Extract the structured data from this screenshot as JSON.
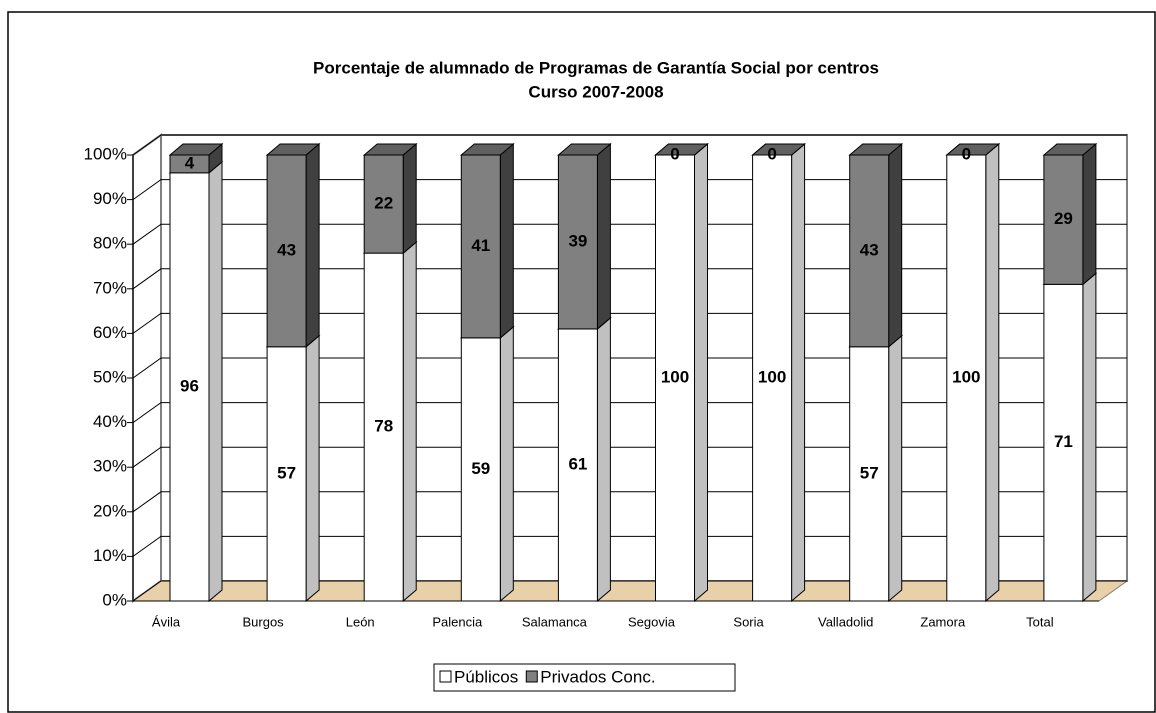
{
  "chart_data": {
    "type": "bar3d_stacked",
    "title": "Porcentaje de alumnado de Programas de Garantía Social  por centros",
    "subtitle": "Curso 2007-2008",
    "categories": [
      "Ávila",
      "Burgos",
      "León",
      "Palencia",
      "Salamanca",
      "Segovia",
      "Soria",
      "Valladolid",
      "Zamora",
      "Total"
    ],
    "series": [
      {
        "name": "Públicos",
        "color": "#ffffff",
        "values": [
          96,
          57,
          78,
          59,
          61,
          100,
          100,
          57,
          100,
          71
        ]
      },
      {
        "name": "Privados Conc.",
        "color": "#808080",
        "values": [
          4,
          43,
          22,
          41,
          39,
          0,
          0,
          43,
          0,
          29
        ]
      }
    ],
    "ylim": [
      0,
      100
    ],
    "yticks": [
      {
        "value": 0,
        "label": "0%"
      },
      {
        "value": 10,
        "label": "10%"
      },
      {
        "value": 20,
        "label": "20%"
      },
      {
        "value": 30,
        "label": "30%"
      },
      {
        "value": 40,
        "label": "40%"
      },
      {
        "value": 50,
        "label": "50%"
      },
      {
        "value": 60,
        "label": "60%"
      },
      {
        "value": 70,
        "label": "70%"
      },
      {
        "value": 80,
        "label": "80%"
      },
      {
        "value": 90,
        "label": "90%"
      },
      {
        "value": 100,
        "label": "100%"
      }
    ],
    "grid": true,
    "legend": "bottom"
  }
}
